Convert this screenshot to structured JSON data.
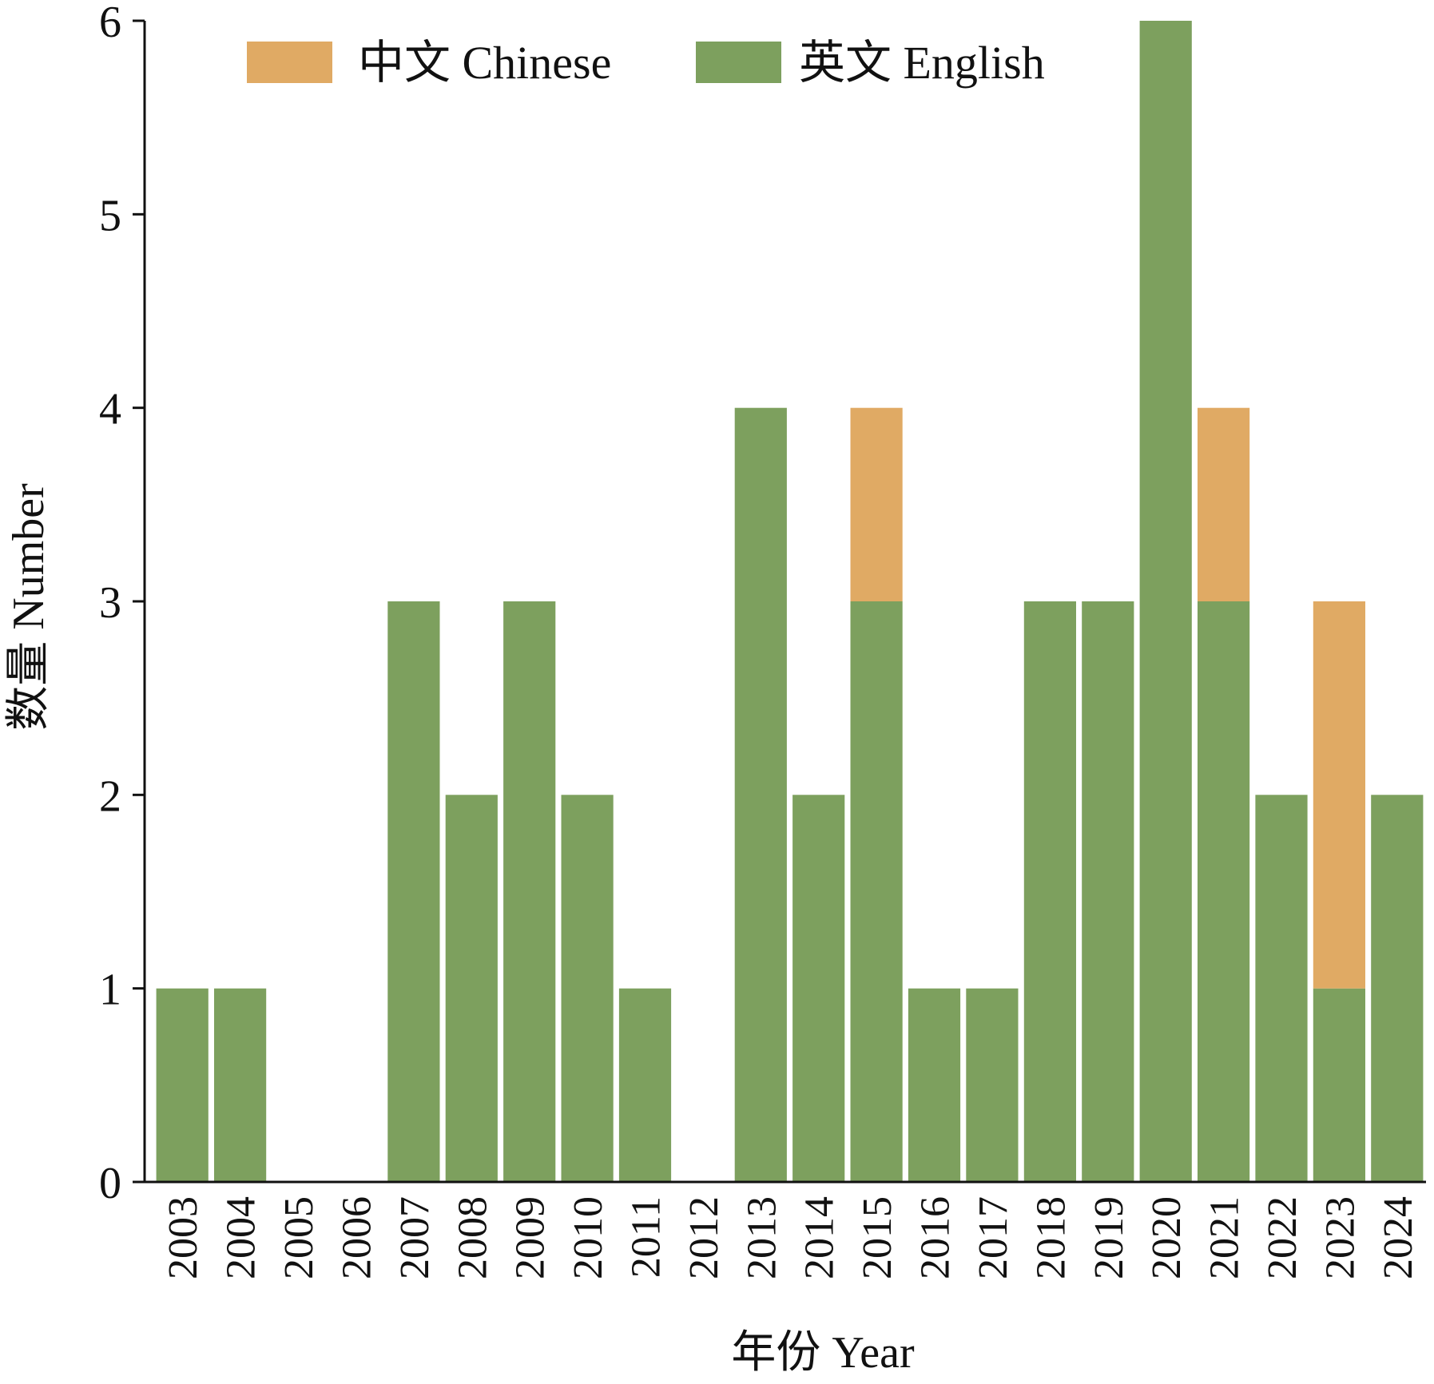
{
  "chart_data": {
    "type": "bar",
    "stacked": true,
    "categories": [
      "2003",
      "2004",
      "2005",
      "2006",
      "2007",
      "2008",
      "2009",
      "2010",
      "2011",
      "2012",
      "2013",
      "2014",
      "2015",
      "2016",
      "2017",
      "2018",
      "2019",
      "2020",
      "2021",
      "2022",
      "2023",
      "2024"
    ],
    "series": [
      {
        "name": "英文 English",
        "color": "#7da05e",
        "values": [
          1,
          1,
          0,
          0,
          3,
          2,
          3,
          2,
          1,
          0,
          4,
          2,
          3,
          1,
          1,
          3,
          3,
          6,
          3,
          2,
          1,
          2
        ]
      },
      {
        "name": "中文 Chinese",
        "color": "#e0aa64",
        "values": [
          0,
          0,
          0,
          0,
          0,
          0,
          0,
          0,
          0,
          0,
          0,
          0,
          1,
          0,
          0,
          0,
          0,
          0,
          1,
          0,
          2,
          0
        ]
      }
    ],
    "legend_order": [
      1,
      0
    ],
    "legend_position": "top-left",
    "xlabel": "年份 Year",
    "ylabel": "数量 Number",
    "ylim": [
      0,
      6
    ],
    "yticks": [
      0,
      1,
      2,
      3,
      4,
      5,
      6
    ],
    "grid": false
  }
}
